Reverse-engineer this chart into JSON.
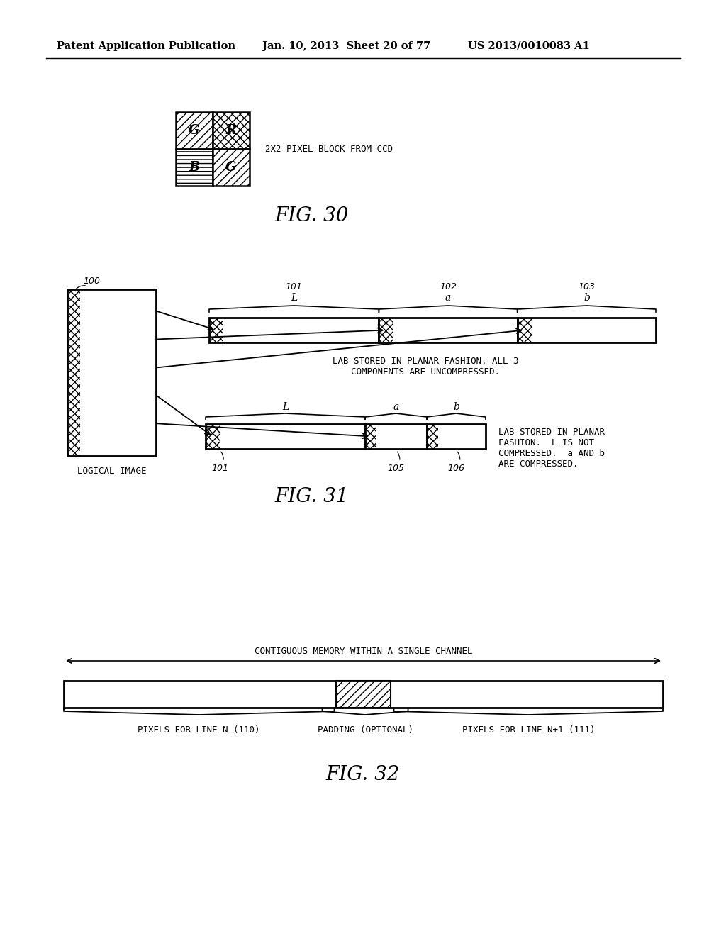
{
  "bg_color": "#ffffff",
  "header_left": "Patent Application Publication",
  "header_mid": "Jan. 10, 2013  Sheet 20 of 77",
  "header_right": "US 2013/0010083 A1",
  "fig30_label": "FIG. 30",
  "fig31_label": "FIG. 31",
  "fig32_label": "FIG. 32",
  "fig30_caption": "2X2 PIXEL BLOCK FROM CCD",
  "fig31_caption1": "LAB STORED IN PLANAR FASHION. ALL 3\nCOMPONENTS ARE UNCOMPRESSED.",
  "fig31_caption2": "LAB STORED IN PLANAR\nFASHION.  L IS NOT\nCOMPRESSED.  a AND b\nARE COMPRESSED.",
  "fig31_logical_image": "LOGICAL IMAGE",
  "fig32_caption_top": "CONTIGUOUS MEMORY WITHIN A SINGLE CHANNEL",
  "fig32_label_left": "PIXELS FOR LINE N (110)",
  "fig32_label_mid": "PADDING (OPTIONAL)",
  "fig32_label_right": "PIXELS FOR LINE N+1 (111)"
}
